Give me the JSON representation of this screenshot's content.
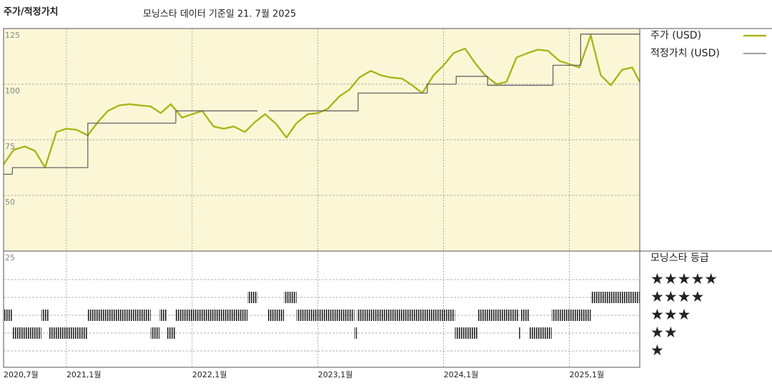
{
  "chart_data": {
    "type": "line",
    "title": "주가/적정가치",
    "subtitle": "모닝스타 데이터 기준일 21. 7월 2025",
    "xlim": [
      2020.5,
      2025.56
    ],
    "xticks": [
      {
        "value": 2020.5,
        "label": "2020,7월"
      },
      {
        "value": 2021,
        "label": "2021,1월"
      },
      {
        "value": 2022,
        "label": "2022,1월"
      },
      {
        "value": 2023,
        "label": "2023,1월"
      },
      {
        "value": 2024,
        "label": "2024,1월"
      },
      {
        "value": 2025,
        "label": "2025,1월"
      }
    ],
    "ylim": [
      25,
      125
    ],
    "yticks": [
      25,
      50,
      75,
      100,
      125
    ],
    "grid": true,
    "series": [
      {
        "name": "주가 (USD)",
        "color": "#a9b51b",
        "x": [
          2020.5,
          2020.58,
          2020.67,
          2020.75,
          2020.83,
          2020.92,
          2021.0,
          2021.08,
          2021.17,
          2021.25,
          2021.33,
          2021.42,
          2021.5,
          2021.58,
          2021.67,
          2021.75,
          2021.83,
          2021.92,
          2022.0,
          2022.08,
          2022.17,
          2022.25,
          2022.33,
          2022.42,
          2022.5,
          2022.58,
          2022.67,
          2022.75,
          2022.83,
          2022.92,
          2023.0,
          2023.08,
          2023.17,
          2023.25,
          2023.33,
          2023.42,
          2023.5,
          2023.58,
          2023.67,
          2023.75,
          2023.83,
          2023.92,
          2024.0,
          2024.08,
          2024.17,
          2024.25,
          2024.33,
          2024.42,
          2024.5,
          2024.58,
          2024.67,
          2024.75,
          2024.83,
          2024.92,
          2025.0,
          2025.08,
          2025.17,
          2025.25,
          2025.33,
          2025.42,
          2025.5,
          2025.56
        ],
        "values": [
          64,
          70.5,
          72,
          70,
          62.5,
          78.5,
          80,
          79.5,
          77,
          83,
          88,
          90.5,
          91,
          90.5,
          90,
          87,
          91,
          85,
          86.5,
          88,
          81,
          80,
          81,
          78.5,
          83,
          86.5,
          82,
          76,
          82.5,
          86.5,
          87,
          89,
          94.5,
          97.5,
          103,
          106,
          104,
          103,
          102.5,
          99.5,
          96,
          104,
          108.5,
          114,
          116,
          109.5,
          104,
          100,
          101,
          112,
          114,
          115.5,
          115,
          110.5,
          109,
          107.5,
          122,
          104,
          99.5,
          106.5,
          107.5,
          101
        ]
      },
      {
        "name": "적정가치 (USD)",
        "color": "#666666",
        "step": true,
        "x": [
          2020.5,
          2020.57,
          2021.17,
          2021.87,
          2022.52,
          2022.61,
          2023.32,
          2023.87,
          2024.1,
          2024.35,
          2024.87,
          2025.09
        ],
        "values": [
          59.5,
          62.5,
          82.5,
          88,
          null,
          88,
          96,
          100,
          103.5,
          99.5,
          108.5,
          122.5
        ]
      }
    ],
    "rating_panel": {
      "title": "모닝스타 등급",
      "labels": [
        "★★★★★",
        "★★★★",
        "★★★",
        "★★",
        "★"
      ],
      "levels": [
        5,
        4,
        3,
        2,
        1
      ],
      "start": [
        2020.5,
        2020.57,
        2020.8,
        2020.86,
        2021.17,
        2021.67,
        2021.74,
        2021.8,
        2021.87,
        2022.44,
        2022.52,
        2022.6,
        2022.73,
        2022.83,
        2023.29,
        2023.31,
        2024.09,
        2024.27,
        2024.6,
        2024.61,
        2024.68,
        2024.86,
        2025.17
      ],
      "values": [
        3,
        2,
        3,
        2,
        3,
        2,
        3,
        2,
        3,
        4,
        null,
        3,
        4,
        3,
        2,
        3,
        2,
        3,
        2,
        3,
        2,
        3,
        4
      ]
    }
  }
}
